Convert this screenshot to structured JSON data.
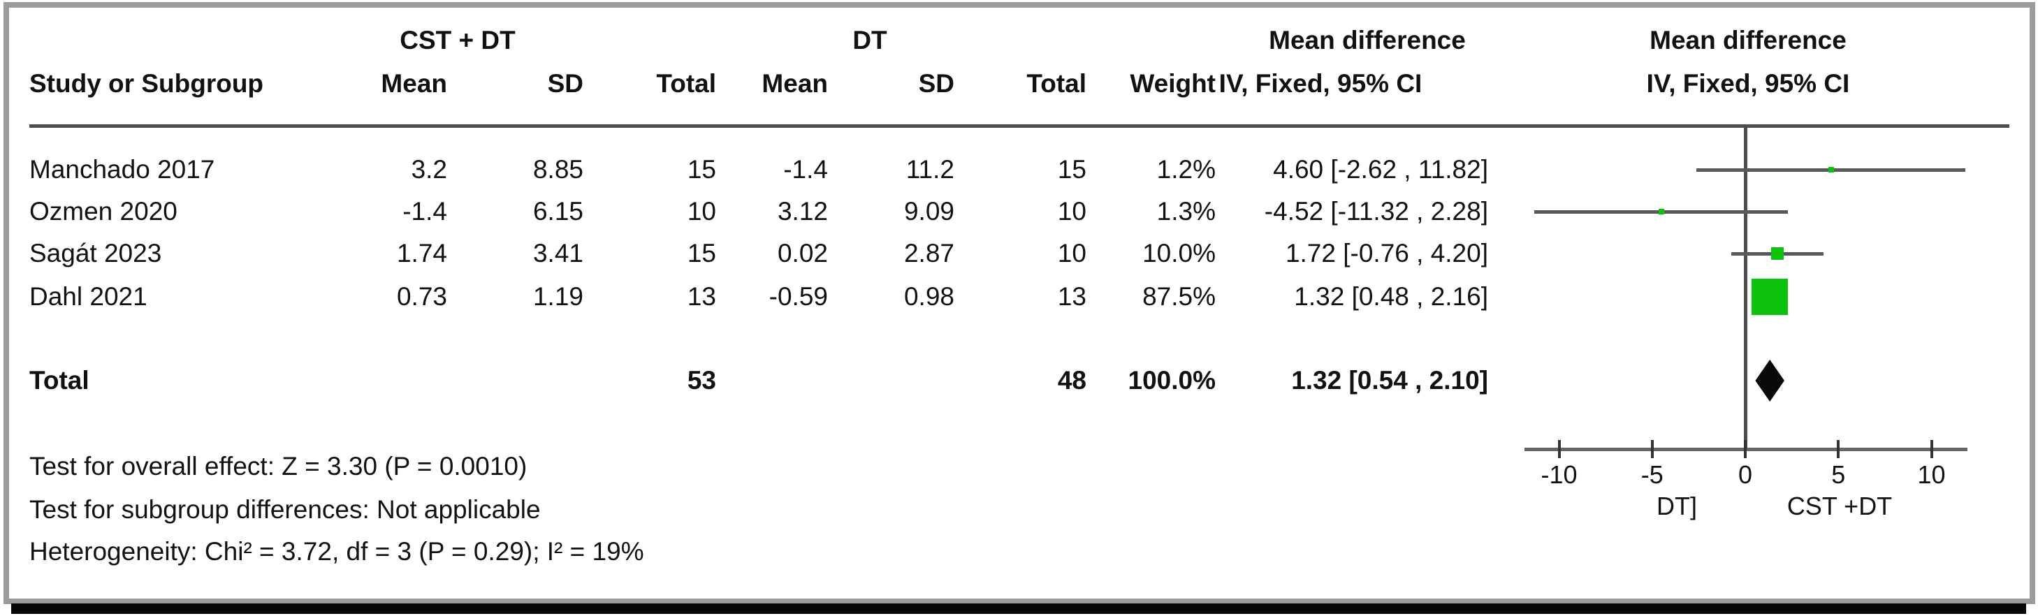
{
  "header": {
    "group1": "CST + DT",
    "group2": "DT",
    "col_study": "Study or Subgroup",
    "col_mean": "Mean",
    "col_sd": "SD",
    "col_total": "Total",
    "col_weight": "Weight",
    "md_title": "Mean difference",
    "md_sub": "IV, Fixed, 95% CI",
    "plot_title": "Mean difference",
    "plot_sub": "IV, Fixed, 95% CI"
  },
  "rows": [
    {
      "study": "Manchado 2017",
      "mean1": "3.2",
      "sd1": "8.85",
      "total1": "15",
      "mean2": "-1.4",
      "sd2": "11.2",
      "total2": "15",
      "weight": "1.2%",
      "ci": "4.60 [-2.62 , 11.82]"
    },
    {
      "study": "Ozmen 2020",
      "mean1": "-1.4",
      "sd1": "6.15",
      "total1": "10",
      "mean2": "3.12",
      "sd2": "9.09",
      "total2": "10",
      "weight": "1.3%",
      "ci": "-4.52 [-11.32 , 2.28]"
    },
    {
      "study": "Sagát 2023",
      "mean1": "1.74",
      "sd1": "3.41",
      "total1": "15",
      "mean2": "0.02",
      "sd2": "2.87",
      "total2": "10",
      "weight": "10.0%",
      "ci": "1.72 [-0.76 , 4.20]"
    },
    {
      "study": "Dahl 2021",
      "mean1": "0.73",
      "sd1": "1.19",
      "total1": "13",
      "mean2": "-0.59",
      "sd2": "0.98",
      "total2": "13",
      "weight": "87.5%",
      "ci": "1.32 [0.48 , 2.16]"
    }
  ],
  "total_row": {
    "label": "Total",
    "total1": "53",
    "total2": "48",
    "weight": "100.0%",
    "ci": "1.32 [0.54 , 2.10]"
  },
  "footer": {
    "line1": "Test for overall effect: Z = 3.30 (P = 0.0010)",
    "line2": "Test for subgroup differences: Not applicable",
    "line3": "Heterogeneity: Chi² = 3.72, df = 3 (P = 0.29); I² = 19%"
  },
  "axis": {
    "label_left": "DT]",
    "label_right": "CST +DT"
  },
  "chart_data": {
    "type": "forest",
    "effect_measure": "Mean difference, IV, Fixed, 95% CI",
    "studies": [
      {
        "name": "Manchado 2017",
        "md": 4.6,
        "ci_low": -2.62,
        "ci_high": 11.82,
        "weight_pct": 1.2
      },
      {
        "name": "Ozmen 2020",
        "md": -4.52,
        "ci_low": -11.32,
        "ci_high": 2.28,
        "weight_pct": 1.3
      },
      {
        "name": "Sagát 2023",
        "md": 1.72,
        "ci_low": -0.76,
        "ci_high": 4.2,
        "weight_pct": 10.0
      },
      {
        "name": "Dahl 2021",
        "md": 1.32,
        "ci_low": 0.48,
        "ci_high": 2.16,
        "weight_pct": 87.5
      }
    ],
    "total": {
      "name": "Total",
      "md": 1.32,
      "ci_low": 0.54,
      "ci_high": 2.1,
      "weight_pct": 100.0
    },
    "x_ticks": [
      -10,
      -5,
      0,
      5,
      10
    ],
    "xlim": [
      -11.9,
      11.9
    ],
    "favours_left": "DT]",
    "favours_right": "CST +DT",
    "marker_color": "#0cc20c",
    "diamond_color": "#0a0a0a",
    "ci_line_color": "#595959"
  }
}
